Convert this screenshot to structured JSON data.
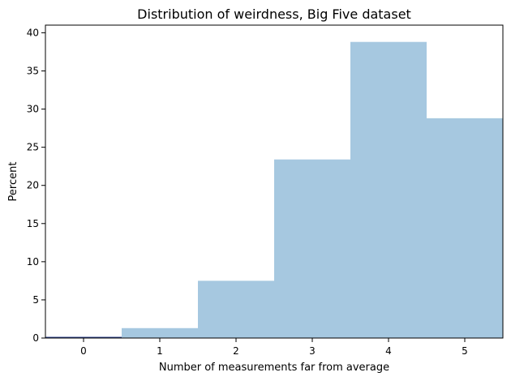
{
  "chart_data": {
    "type": "bar",
    "title": "Distribution of weirdness, Big Five dataset",
    "xlabel": "Number of measurements far from average",
    "ylabel": "Percent",
    "categories": [
      0,
      1,
      2,
      3,
      4,
      5
    ],
    "values": [
      0.1,
      1.3,
      7.5,
      23.4,
      38.8,
      28.8
    ],
    "bin_width": 1,
    "xlim": [
      -0.5,
      5.5
    ],
    "ylim": [
      0,
      41
    ],
    "xticks": [
      0,
      1,
      2,
      3,
      4,
      5
    ],
    "yticks": [
      0,
      5,
      10,
      15,
      20,
      25,
      30,
      35,
      40
    ],
    "bar_color": "#a6c8e0",
    "first_bar_edge_color": "#2b3f8f",
    "grid": false,
    "legend": "none"
  }
}
